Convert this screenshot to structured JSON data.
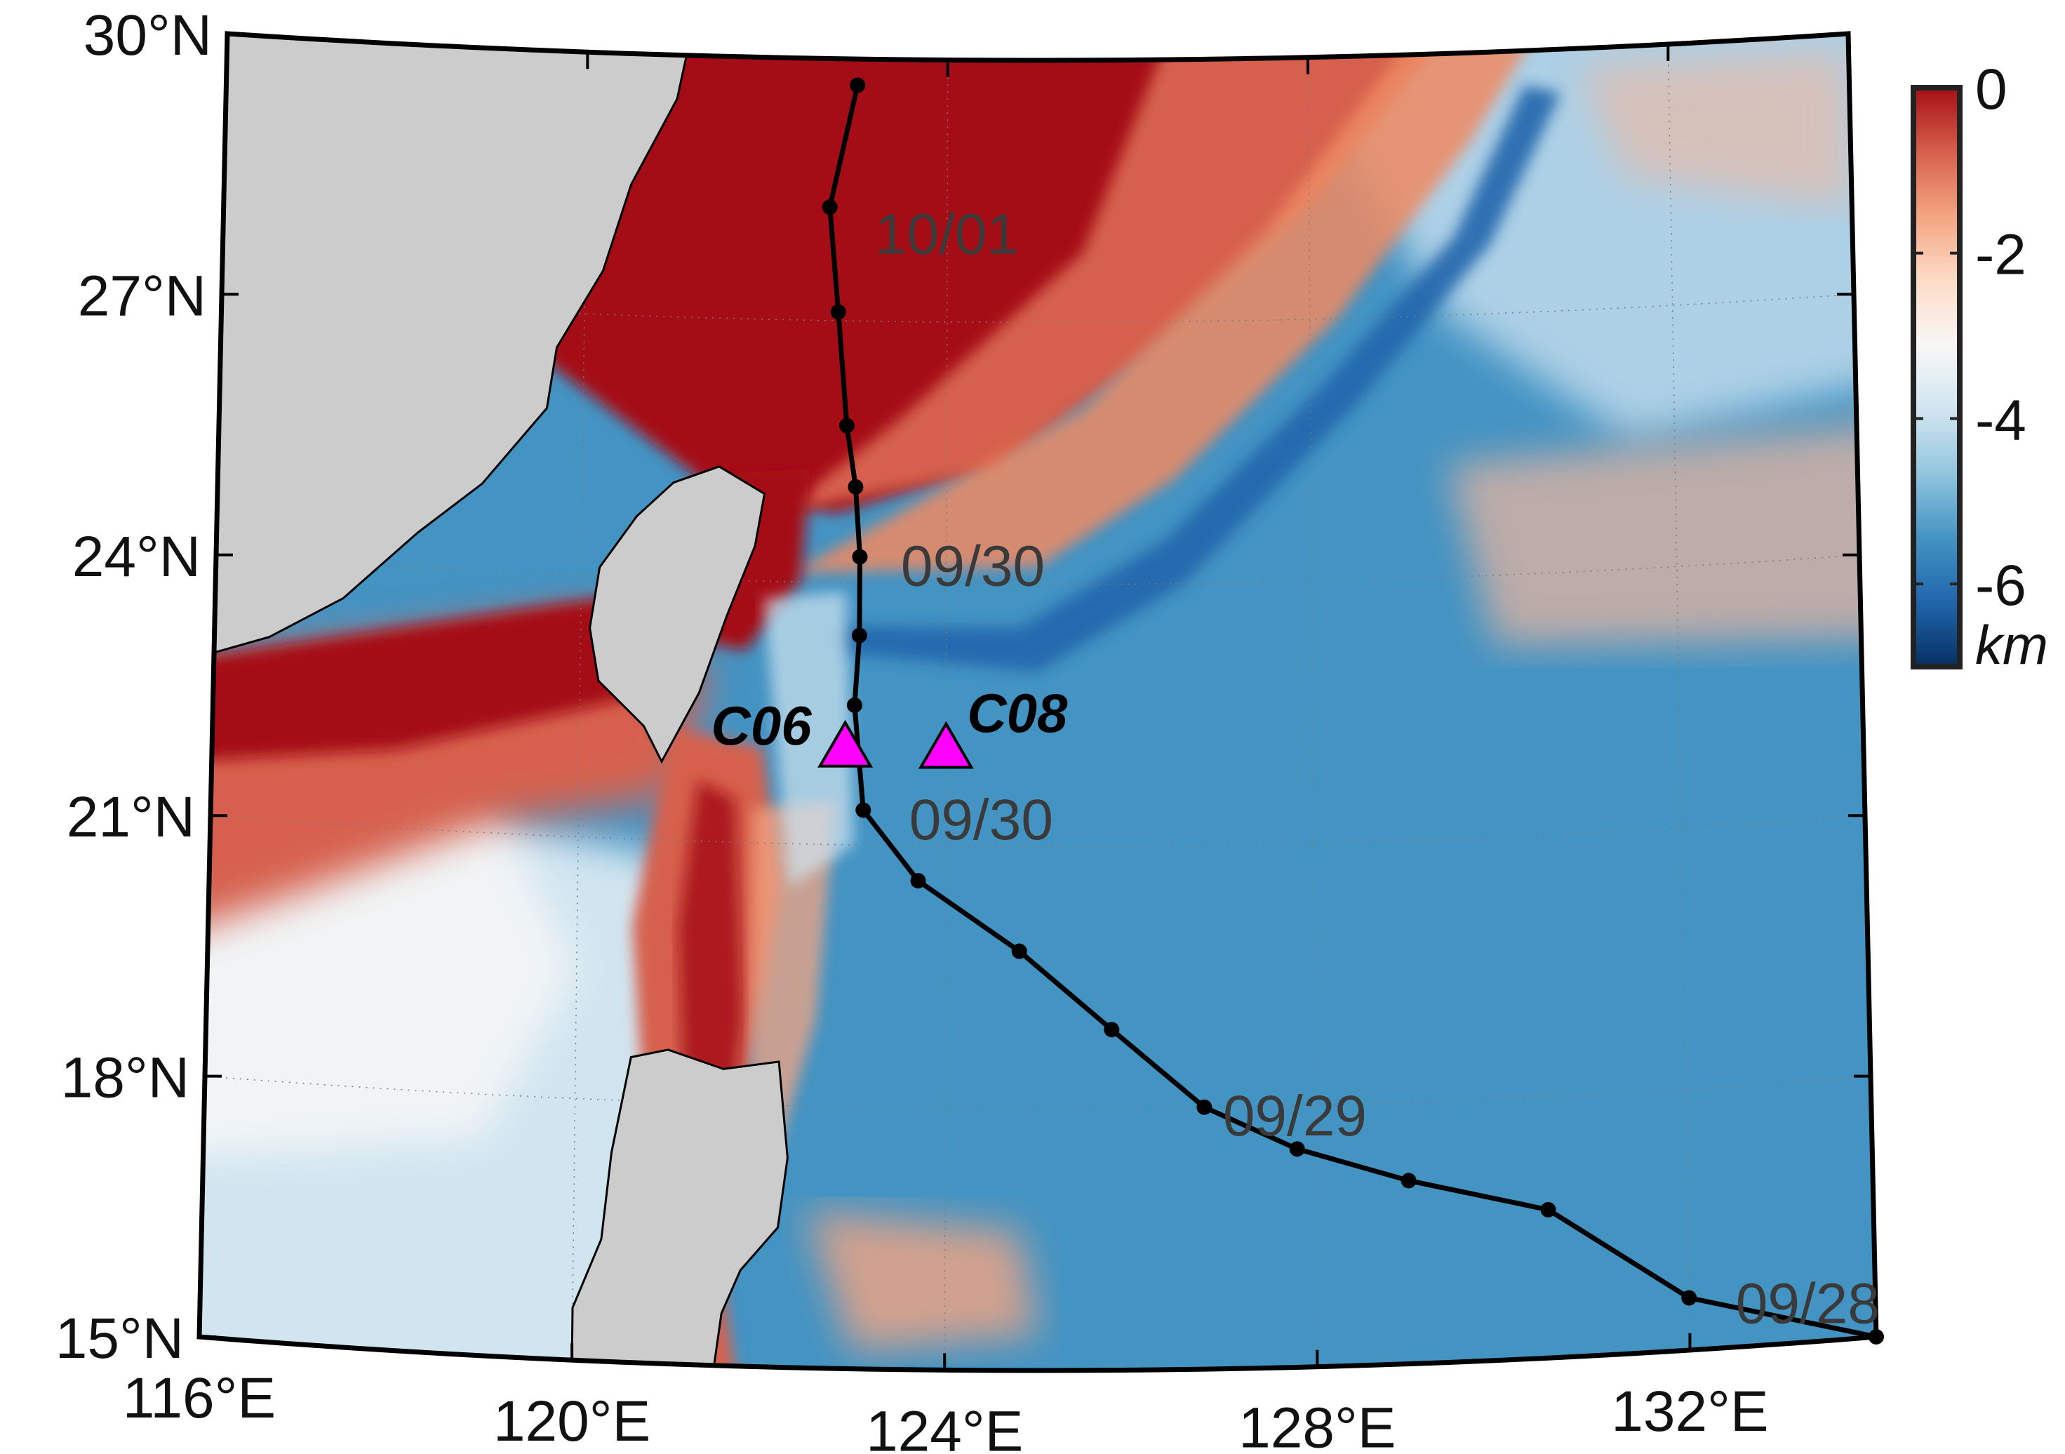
{
  "map": {
    "lon_range": [
      116,
      134
    ],
    "lat_range": [
      15,
      30
    ],
    "lon_ticks": [
      "116°E",
      "120°E",
      "124°E",
      "128°E",
      "132°E"
    ],
    "lat_ticks": [
      "15°N",
      "18°N",
      "21°N",
      "24°N",
      "27°N",
      "30°N"
    ],
    "colors": {
      "shelf": "#a50f15",
      "slope_light": "#f4a582",
      "mid": "#f7f7f7",
      "deep": "#4393c3",
      "trench": "#2166ac",
      "land": "#cccccc",
      "track": "#000000",
      "station": "#ff00ff"
    }
  },
  "colorbar": {
    "ticks": [
      "0",
      "-2",
      "-4",
      "-6"
    ],
    "unit": "km",
    "stops": [
      "#a50f15",
      "#d6604d",
      "#f4a582",
      "#fddbc7",
      "#f7f7f7",
      "#d1e5f0",
      "#92c5de",
      "#4393c3",
      "#2166ac",
      "#053061"
    ]
  },
  "stations": [
    {
      "name": "C06",
      "lon": 122.9,
      "lat": 22.1
    },
    {
      "name": "C08",
      "lon": 124.0,
      "lat": 22.1
    }
  ],
  "track": {
    "points": [
      [
        134.0,
        15.0
      ],
      [
        132.0,
        15.6
      ],
      [
        130.5,
        16.7
      ],
      [
        129.0,
        17.1
      ],
      [
        127.8,
        17.5
      ],
      [
        126.8,
        18.0
      ],
      [
        125.8,
        18.9
      ],
      [
        124.8,
        19.8
      ],
      [
        123.7,
        20.6
      ],
      [
        123.1,
        21.4
      ],
      [
        123.0,
        22.6
      ],
      [
        123.05,
        23.4
      ],
      [
        123.05,
        24.3
      ],
      [
        123.0,
        25.1
      ],
      [
        122.9,
        25.8
      ],
      [
        122.8,
        27.1
      ],
      [
        122.7,
        28.3
      ],
      [
        123.0,
        29.7
      ]
    ],
    "date_labels": [
      {
        "text": "09/28",
        "lon": 132.5,
        "lat": 15.5
      },
      {
        "text": "09/29",
        "lon": 127.0,
        "lat": 17.9
      },
      {
        "text": "09/30",
        "lon": 123.6,
        "lat": 21.3
      },
      {
        "text": "09/30",
        "lon": 123.5,
        "lat": 24.2
      },
      {
        "text": "10/01",
        "lon": 123.2,
        "lat": 28.0
      }
    ]
  }
}
